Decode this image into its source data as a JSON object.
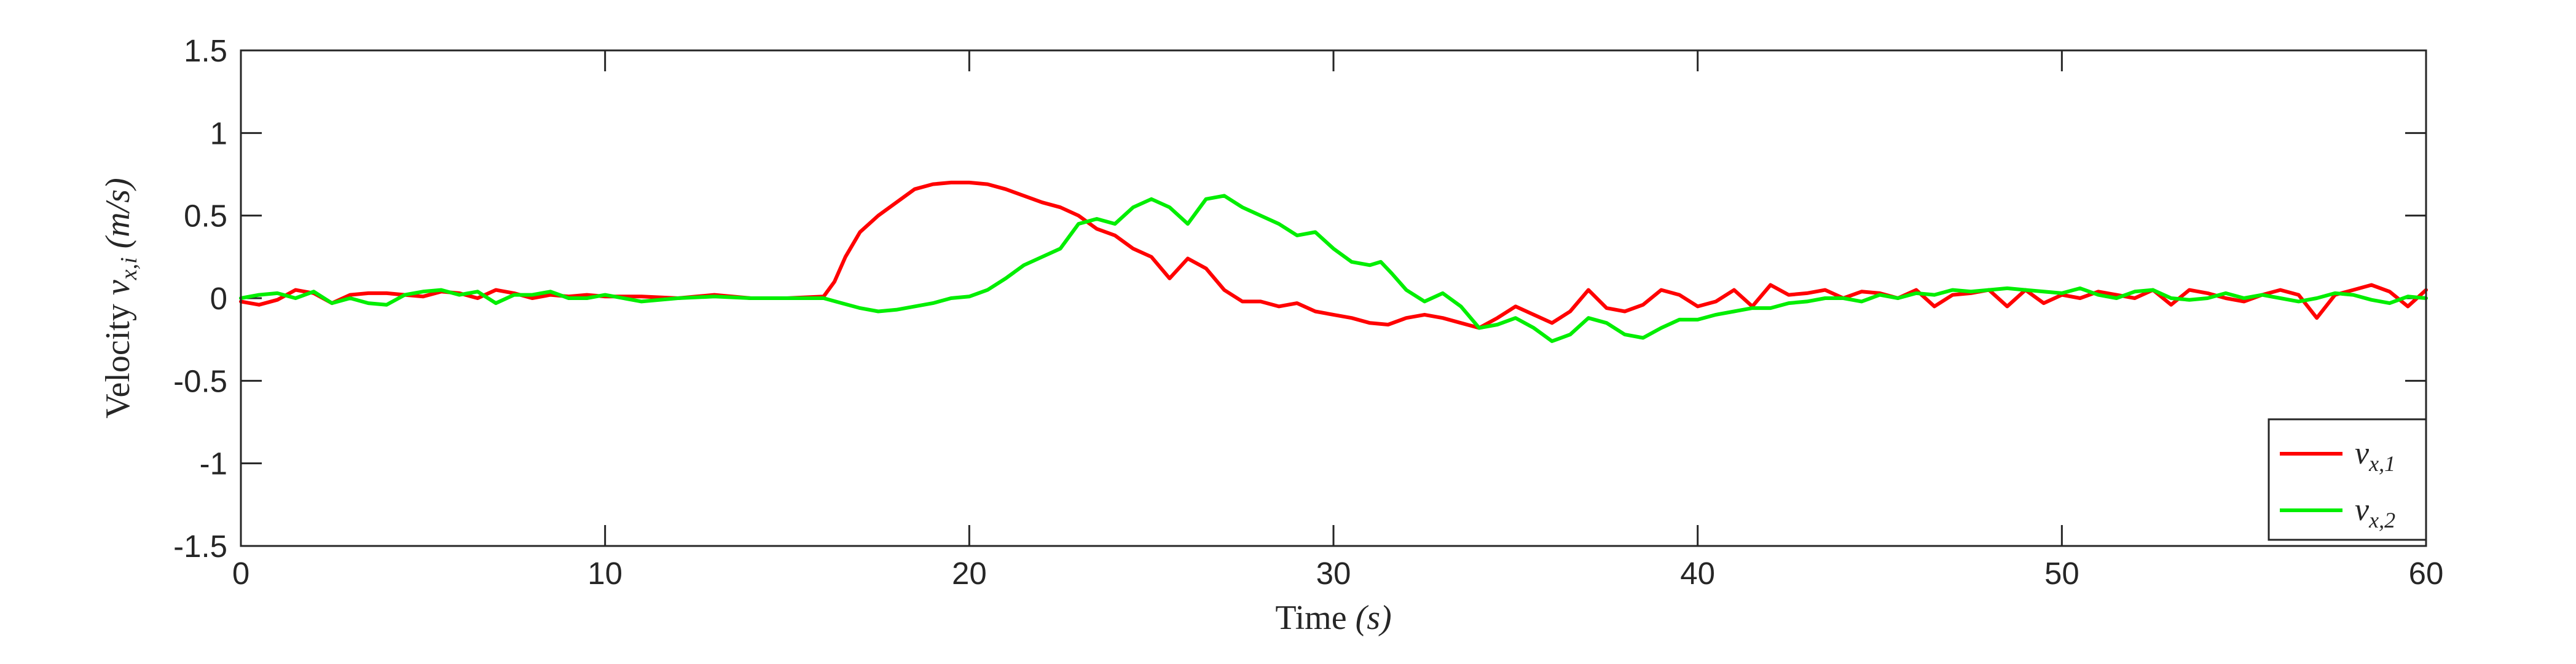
{
  "chart_data": {
    "type": "line",
    "title": "",
    "xlabel": {
      "prefix": "Time ",
      "math": "(s)"
    },
    "ylabel": {
      "prefix": "Velocity ",
      "math": "v",
      "sub": "x,i",
      "suffix": " (m/s)"
    },
    "xlim": [
      0,
      60
    ],
    "ylim": [
      -1.5,
      1.5
    ],
    "xticks": [
      0,
      10,
      20,
      30,
      40,
      50,
      60
    ],
    "xtick_labels": [
      "0",
      "10",
      "20",
      "30",
      "40",
      "50",
      "60"
    ],
    "yticks": [
      -1.5,
      -1,
      -0.5,
      0,
      0.5,
      1,
      1.5
    ],
    "ytick_labels": [
      "-1.5",
      "-1",
      "-0.5",
      "0",
      "0.5",
      "1",
      "1.5"
    ],
    "grid": false,
    "legend_position": "bottom-right",
    "series": [
      {
        "name": "v_{x,1}",
        "label_base": "v",
        "label_sub": "x,1",
        "color": "#ff0000",
        "x": [
          0,
          0.5,
          1,
          1.5,
          2,
          2.5,
          3,
          3.5,
          4,
          4.5,
          5,
          5.5,
          6,
          6.5,
          7,
          7.5,
          8,
          8.5,
          9,
          9.5,
          10,
          11,
          12,
          13,
          14,
          15,
          16,
          16.3,
          16.6,
          17,
          17.5,
          18,
          18.5,
          19,
          19.5,
          20,
          20.5,
          21,
          21.5,
          22,
          22.5,
          23,
          23.5,
          24,
          24.5,
          25,
          25.5,
          26,
          26.5,
          27,
          27.5,
          28,
          28.5,
          29,
          29.5,
          30,
          30.5,
          31,
          31.5,
          32,
          32.5,
          33,
          33.5,
          34,
          34.5,
          35,
          35.5,
          36,
          36.5,
          37,
          37.5,
          38,
          38.5,
          39,
          39.5,
          40,
          40.5,
          41,
          41.5,
          42,
          42.5,
          43,
          43.5,
          44,
          44.5,
          45,
          45.5,
          46,
          46.5,
          47,
          47.5,
          48,
          48.5,
          49,
          49.5,
          50,
          50.5,
          51,
          51.5,
          52,
          52.5,
          53,
          53.5,
          54,
          54.5,
          55,
          55.5,
          56,
          56.5,
          57,
          57.5,
          58,
          58.5,
          59,
          59.5,
          60
        ],
        "y": [
          -0.02,
          -0.04,
          -0.01,
          0.05,
          0.03,
          -0.03,
          0.02,
          0.03,
          0.03,
          0.02,
          0.01,
          0.04,
          0.03,
          0.0,
          0.05,
          0.03,
          0.0,
          0.02,
          0.01,
          0.02,
          0.01,
          0.01,
          0.0,
          0.02,
          0.0,
          0.0,
          0.01,
          0.1,
          0.25,
          0.4,
          0.5,
          0.58,
          0.66,
          0.69,
          0.7,
          0.7,
          0.69,
          0.66,
          0.62,
          0.58,
          0.55,
          0.5,
          0.42,
          0.38,
          0.3,
          0.25,
          0.12,
          0.24,
          0.18,
          0.05,
          -0.02,
          -0.02,
          -0.05,
          -0.03,
          -0.08,
          -0.1,
          -0.12,
          -0.15,
          -0.16,
          -0.12,
          -0.1,
          -0.12,
          -0.15,
          -0.18,
          -0.12,
          -0.05,
          -0.1,
          -0.15,
          -0.08,
          0.05,
          -0.06,
          -0.08,
          -0.04,
          0.05,
          0.02,
          -0.05,
          -0.02,
          0.05,
          -0.05,
          0.08,
          0.02,
          0.03,
          0.05,
          0.0,
          0.04,
          0.03,
          0.0,
          0.05,
          -0.05,
          0.02,
          0.03,
          0.05,
          -0.05,
          0.05,
          -0.03,
          0.02,
          0.0,
          0.04,
          0.02,
          0.0,
          0.05,
          -0.04,
          0.05,
          0.03,
          0.0,
          -0.02,
          0.02,
          0.05,
          0.02,
          -0.12,
          0.02,
          0.05,
          0.08,
          0.04,
          -0.05,
          0.05
        ]
      },
      {
        "name": "v_{x,2}",
        "label_base": "v",
        "label_sub": "x,2",
        "color": "#00ee00",
        "x": [
          0,
          0.5,
          1,
          1.5,
          2,
          2.5,
          3,
          3.5,
          4,
          4.5,
          5,
          5.5,
          6,
          6.5,
          7,
          7.5,
          8,
          8.5,
          9,
          9.5,
          10,
          11,
          12,
          13,
          14,
          15,
          16,
          16.5,
          17,
          17.5,
          18,
          18.5,
          19,
          19.5,
          20,
          20.5,
          21,
          21.5,
          22,
          22.5,
          23,
          23.5,
          24,
          24.5,
          25,
          25.5,
          26,
          26.5,
          27,
          27.5,
          28,
          28.5,
          29,
          29.5,
          30,
          30.5,
          31,
          31.3,
          31.6,
          32,
          32.5,
          33,
          33.5,
          34,
          34.5,
          35,
          35.5,
          36,
          36.5,
          37,
          37.5,
          38,
          38.5,
          39,
          39.5,
          40,
          40.5,
          41,
          41.5,
          42,
          42.5,
          43,
          43.5,
          44,
          44.5,
          45,
          45.5,
          46,
          46.5,
          47,
          47.5,
          48,
          48.5,
          49,
          49.5,
          50,
          50.5,
          51,
          51.5,
          52,
          52.5,
          53,
          53.5,
          54,
          54.5,
          55,
          55.5,
          56,
          56.5,
          57,
          57.5,
          58,
          58.5,
          59,
          59.5,
          60
        ],
        "y": [
          0.0,
          0.02,
          0.03,
          0.0,
          0.04,
          -0.03,
          0.0,
          -0.03,
          -0.04,
          0.02,
          0.04,
          0.05,
          0.02,
          0.04,
          -0.03,
          0.02,
          0.02,
          0.04,
          0.0,
          0.0,
          0.02,
          -0.02,
          0.0,
          0.01,
          0.0,
          0.0,
          0.0,
          -0.03,
          -0.06,
          -0.08,
          -0.07,
          -0.05,
          -0.03,
          0.0,
          0.01,
          0.05,
          0.12,
          0.2,
          0.25,
          0.3,
          0.45,
          0.48,
          0.45,
          0.55,
          0.6,
          0.55,
          0.45,
          0.6,
          0.62,
          0.55,
          0.5,
          0.45,
          0.38,
          0.4,
          0.3,
          0.22,
          0.2,
          0.22,
          0.15,
          0.05,
          -0.02,
          0.03,
          -0.05,
          -0.18,
          -0.16,
          -0.12,
          -0.18,
          -0.26,
          -0.22,
          -0.12,
          -0.15,
          -0.22,
          -0.24,
          -0.18,
          -0.13,
          -0.13,
          -0.1,
          -0.08,
          -0.06,
          -0.06,
          -0.03,
          -0.02,
          0.0,
          0.0,
          -0.02,
          0.02,
          0.0,
          0.03,
          0.02,
          0.05,
          0.04,
          0.05,
          0.06,
          0.05,
          0.04,
          0.03,
          0.06,
          0.02,
          0.0,
          0.04,
          0.05,
          0.0,
          -0.01,
          0.0,
          0.03,
          0.0,
          0.02,
          0.0,
          -0.02,
          0.0,
          0.03,
          0.02,
          -0.01,
          -0.03,
          0.01,
          0.0
        ]
      }
    ]
  }
}
